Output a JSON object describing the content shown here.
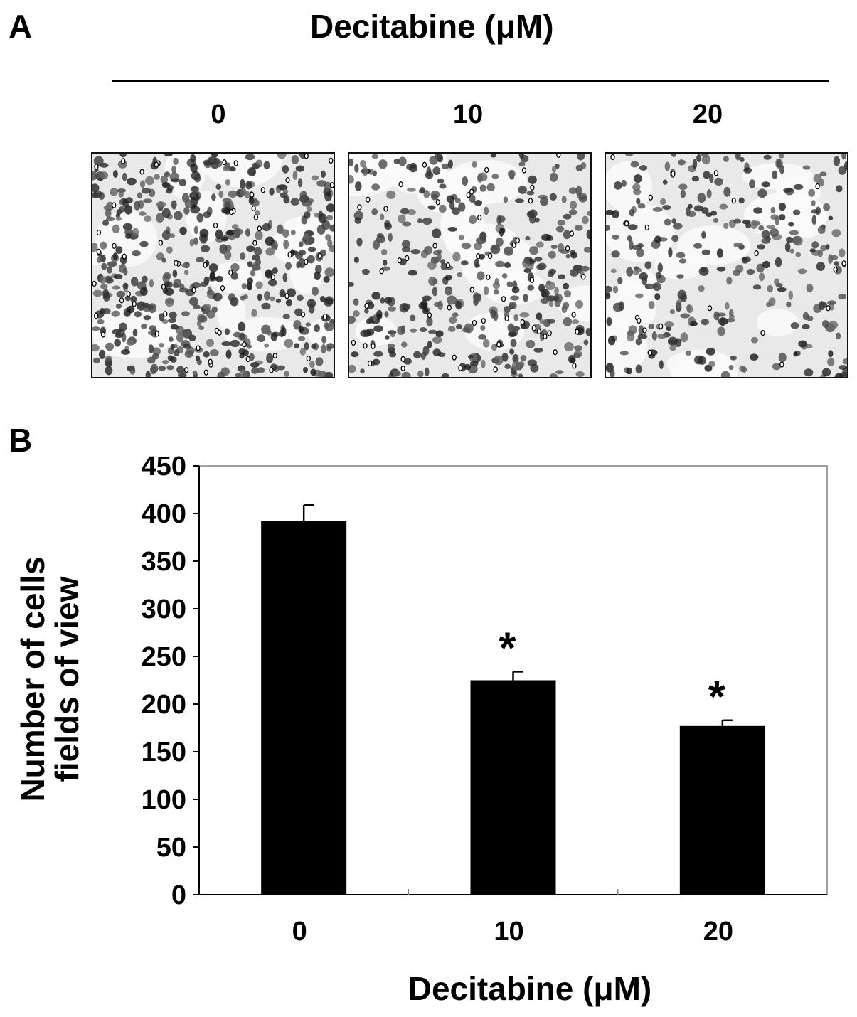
{
  "panel_a": {
    "label": "A",
    "title": "Decitabine (μM)",
    "doses": [
      "0",
      "10",
      "20"
    ]
  },
  "panel_b": {
    "label": "B"
  },
  "chart_data": {
    "type": "bar",
    "title": "",
    "xlabel": "Decitabine (μM)",
    "ylabel_lines": [
      "Number of cells",
      "fields of view"
    ],
    "categories": [
      "0",
      "10",
      "20"
    ],
    "values": [
      392,
      225,
      177
    ],
    "errors": [
      17,
      9,
      6
    ],
    "significance": [
      "",
      "*",
      "*"
    ],
    "ylim": [
      0,
      450
    ],
    "yticks": [
      0,
      50,
      100,
      150,
      200,
      250,
      300,
      350,
      400,
      450
    ],
    "bar_color": "#000000",
    "grid": false,
    "legend": "none"
  }
}
